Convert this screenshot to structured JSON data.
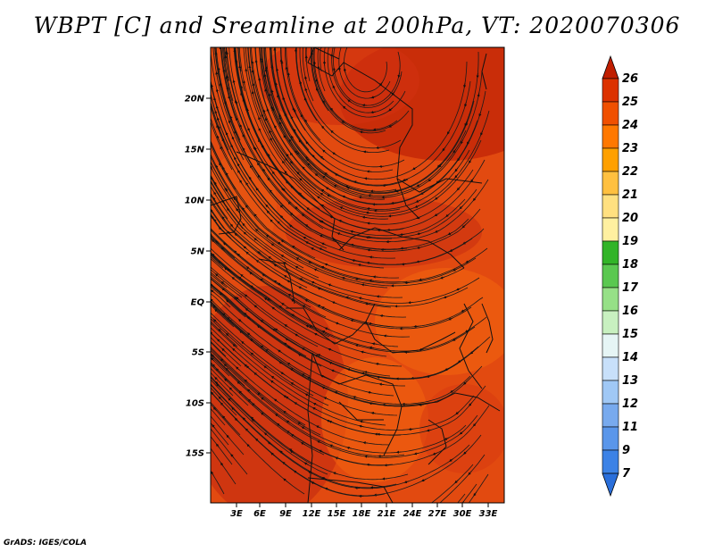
{
  "title": "WBPT [C] and Sreamline at 200hPa, VT: 2020070306",
  "footer": "GrADS: IGES/COLA",
  "map": {
    "lat_ticks": [
      "20N",
      "15N",
      "10N",
      "5N",
      "EQ",
      "5S",
      "10S",
      "15S"
    ],
    "lon_ticks": [
      "3E",
      "6E",
      "9E",
      "12E",
      "15E",
      "18E",
      "21E",
      "24E",
      "27E",
      "30E",
      "33E"
    ]
  },
  "colorbar": {
    "levels": [
      "7",
      "9",
      "11",
      "12",
      "13",
      "14",
      "15",
      "16",
      "17",
      "18",
      "19",
      "20",
      "21",
      "22",
      "23",
      "24",
      "25",
      "26"
    ],
    "colors": [
      "#2a6fdb",
      "#3c82e6",
      "#5a96ea",
      "#78aaee",
      "#a0c8f5",
      "#c8e0fa",
      "#e6f5f5",
      "#c8f0c0",
      "#96e087",
      "#5ac850",
      "#32b428",
      "#fff0a0",
      "#ffe080",
      "#ffc040",
      "#ffa000",
      "#ff7800",
      "#f05000",
      "#dc3200",
      "#c01e00"
    ]
  },
  "colors": {
    "field_base": "#e24a10",
    "field_dark": "#c42808",
    "field_mid": "#e8500e",
    "field_light": "#f2620f"
  }
}
